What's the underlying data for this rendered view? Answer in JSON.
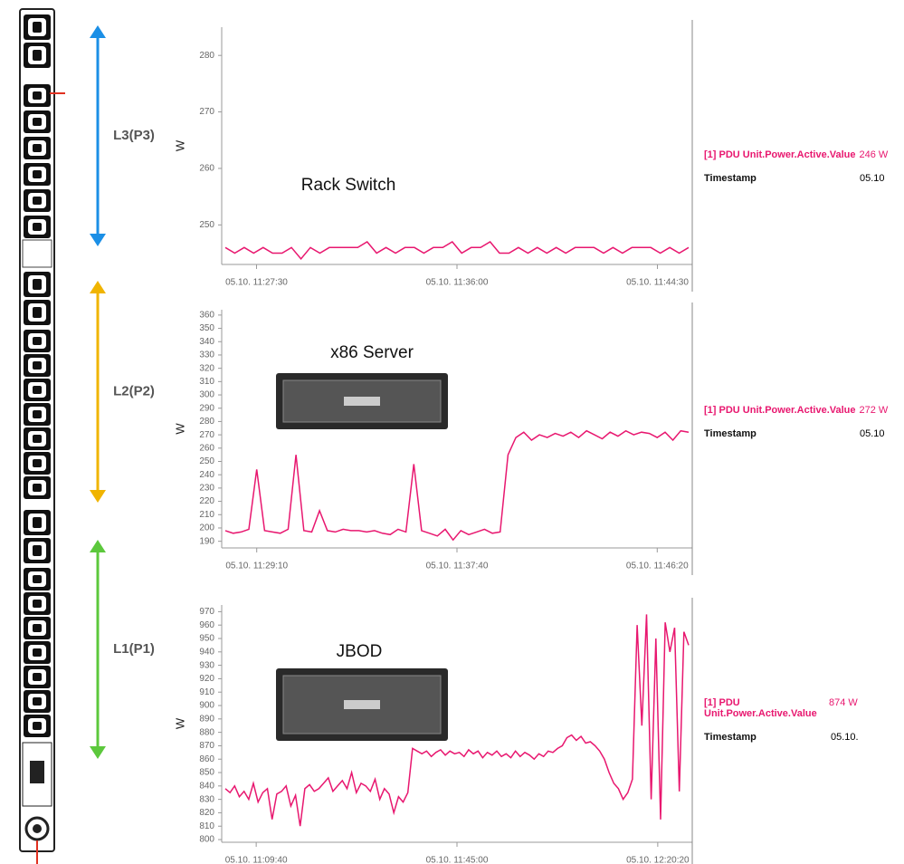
{
  "chart_data": [
    {
      "type": "line",
      "phase": "L3(P3)",
      "phase_color": "#1b8fe6",
      "device": "Rack Switch",
      "ylabel": "W",
      "series": [
        {
          "name": "[1] PDU Unit.Power.Active.Value",
          "color": "#e8176f",
          "values": [
            246,
            245,
            246,
            245,
            246,
            245,
            245,
            246,
            244,
            246,
            245,
            246,
            246,
            246,
            246,
            247,
            245,
            246,
            245,
            246,
            246,
            245,
            246,
            246,
            247,
            245,
            246,
            246,
            247,
            245,
            245,
            246,
            245,
            246,
            245,
            246,
            245,
            246,
            246,
            246,
            245,
            246,
            245,
            246,
            246,
            246,
            245,
            246,
            245,
            246
          ]
        }
      ],
      "readout": "246 W",
      "timestamp_label": "Timestamp",
      "timestamp": "05.10",
      "ylim": [
        243,
        285
      ],
      "yticks": [
        250,
        260,
        270,
        280
      ],
      "xticks": [
        {
          "value": 3.3,
          "label": "05.10. 11:27:30"
        },
        {
          "value": 24.5,
          "label": "05.10. 11:36:00"
        },
        {
          "value": 45.7,
          "label": "05.10. 11:44:30"
        }
      ]
    },
    {
      "type": "line",
      "phase": "L2(P2)",
      "phase_color": "#f0b400",
      "device": "x86 Server",
      "ylabel": "W",
      "series": [
        {
          "name": "[1] PDU Unit.Power.Active.Value",
          "color": "#e8176f",
          "values": [
            198,
            196,
            197,
            199,
            244,
            198,
            197,
            196,
            199,
            255,
            198,
            197,
            213,
            198,
            197,
            199,
            198,
            198,
            197,
            198,
            196,
            195,
            199,
            197,
            248,
            198,
            196,
            194,
            199,
            191,
            198,
            195,
            197,
            199,
            196,
            197,
            255,
            268,
            272,
            266,
            270,
            268,
            271,
            269,
            272,
            268,
            273,
            270,
            267,
            272,
            269,
            273,
            270,
            272,
            271,
            268,
            272,
            266,
            273,
            272
          ]
        }
      ],
      "readout": "272 W",
      "timestamp_label": "Timestamp",
      "timestamp": "05.10",
      "ylim": [
        185,
        364
      ],
      "yticks": [
        190,
        200,
        210,
        220,
        230,
        240,
        250,
        260,
        270,
        280,
        290,
        300,
        310,
        320,
        330,
        340,
        350,
        360
      ],
      "xticks": [
        {
          "value": 4.0,
          "label": "05.10. 11:29:10"
        },
        {
          "value": 29.5,
          "label": "05.10. 11:37:40"
        },
        {
          "value": 55.0,
          "label": "05.10. 11:46:20"
        }
      ]
    },
    {
      "type": "line",
      "phase": "L1(P1)",
      "phase_color": "#5cc83c",
      "device": "JBOD",
      "ylabel": "W",
      "series": [
        {
          "name": "[1] PDU Unit.Power.Active.Value",
          "color": "#e8176f",
          "values": [
            838,
            835,
            840,
            832,
            836,
            830,
            842,
            828,
            835,
            838,
            815,
            834,
            836,
            840,
            825,
            833,
            810,
            838,
            841,
            836,
            838,
            842,
            846,
            836,
            840,
            844,
            838,
            850,
            835,
            842,
            840,
            836,
            845,
            830,
            838,
            834,
            820,
            832,
            828,
            835,
            868,
            866,
            864,
            866,
            862,
            865,
            867,
            863,
            866,
            864,
            865,
            862,
            867,
            864,
            866,
            861,
            865,
            863,
            866,
            862,
            864,
            861,
            866,
            862,
            865,
            863,
            860,
            864,
            862,
            866,
            865,
            868,
            870,
            876,
            878,
            874,
            877,
            872,
            873,
            870,
            866,
            860,
            850,
            842,
            838,
            830,
            835,
            845,
            960,
            885,
            968,
            830,
            950,
            815,
            962,
            940,
            958,
            836,
            955,
            945
          ]
        }
      ],
      "readout": "874 W",
      "timestamp_label": "Timestamp",
      "timestamp": "05.10.",
      "ylim": [
        798,
        975
      ],
      "yticks": [
        800,
        810,
        820,
        830,
        840,
        850,
        860,
        870,
        880,
        890,
        900,
        910,
        920,
        930,
        940,
        950,
        960,
        970
      ],
      "xticks": [
        {
          "value": 6.6,
          "label": "05.10. 11:09:40"
        },
        {
          "value": 49.5,
          "label": "05.10. 11:45:00"
        },
        {
          "value": 92.4,
          "label": "05.10. 12:20:20"
        }
      ]
    }
  ]
}
